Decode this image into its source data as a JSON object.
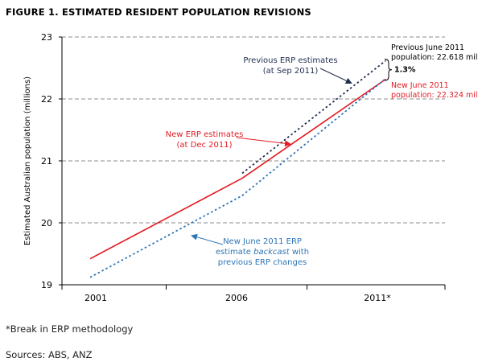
{
  "chart_data": {
    "type": "line",
    "title": "FIGURE 1. ESTIMATED RESIDENT POPULATION REVISIONS",
    "ylabel": "Estimated Australian population (millions)",
    "xlabel": "",
    "ylim": [
      19,
      23
    ],
    "yticks": [
      19,
      20,
      21,
      22,
      23
    ],
    "xlim": [
      1999.8,
      2013.4
    ],
    "xticks": [
      {
        "value": 2001,
        "label": "2001"
      },
      {
        "value": 2006,
        "label": "2006"
      },
      {
        "value": 2011,
        "label": "2011*"
      }
    ],
    "grid": "horizontal dashed",
    "series": [
      {
        "name": "Previous ERP estimates (at Sep 2011)",
        "style": "dotted",
        "color": "#1f2d4f",
        "points": [
          [
            2006.2,
            20.8
          ],
          [
            2011.3,
            22.62
          ]
        ]
      },
      {
        "name": "New ERP estimates (at Dec 2011)",
        "style": "solid",
        "color": "#e31b23",
        "points": [
          [
            2000.8,
            19.42
          ],
          [
            2006.2,
            20.72
          ],
          [
            2011.3,
            22.32
          ]
        ]
      },
      {
        "name": "New June 2011 ERP estimate backcast with previous ERP changes",
        "style": "dotted",
        "color": "#2e75b6",
        "points": [
          [
            2000.8,
            19.12
          ],
          [
            2006.2,
            20.44
          ],
          [
            2011.3,
            22.33
          ]
        ]
      }
    ],
    "annotations": {
      "prev_label": [
        "Previous ERP estimates",
        "(at Sep 2011)"
      ],
      "new_label": [
        "New ERP estimates",
        "(at Dec 2011)"
      ],
      "backcast_label": [
        "New June 2011 ERP",
        "estimate backcast with",
        "previous ERP changes"
      ],
      "prev_june_label": [
        "Previous June 2011",
        "population: 22.618 mil"
      ],
      "new_june_label": [
        "New June 2011",
        "population: 22.324 mil"
      ],
      "gap_label": "1.3%"
    }
  },
  "footnotes": {
    "break_note": "*Break in ERP methodology",
    "sources": "Sources: ABS, ANZ"
  },
  "colors": {
    "previous": "#1f2d4f",
    "new": "#e31b23",
    "backcast": "#2e75b6"
  }
}
